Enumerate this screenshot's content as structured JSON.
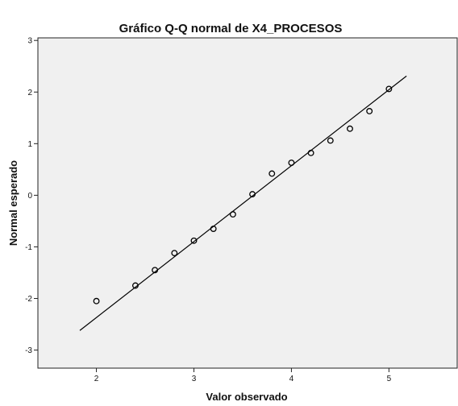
{
  "chart_data": {
    "type": "scatter",
    "title": "Gráfico Q-Q normal de X4_PROCESOS",
    "xlabel": "Valor observado",
    "ylabel": "Normal esperado",
    "xlim": [
      1.4,
      5.7
    ],
    "ylim": [
      -3.35,
      3.05
    ],
    "x_ticks": [
      2,
      3,
      4,
      5
    ],
    "y_ticks": [
      -3,
      -2,
      -1,
      0,
      1,
      2,
      3
    ],
    "grid": false,
    "series": [
      {
        "points": [
          [
            2.0,
            -2.05
          ],
          [
            2.4,
            -1.75
          ],
          [
            2.6,
            -1.45
          ],
          [
            2.8,
            -1.12
          ],
          [
            3.0,
            -0.88
          ],
          [
            3.2,
            -0.65
          ],
          [
            3.4,
            -0.37
          ],
          [
            3.6,
            0.02
          ],
          [
            3.8,
            0.42
          ],
          [
            4.0,
            0.63
          ],
          [
            4.2,
            0.82
          ],
          [
            4.4,
            1.06
          ],
          [
            4.6,
            1.29
          ],
          [
            4.8,
            1.63
          ],
          [
            5.0,
            2.06
          ]
        ]
      }
    ],
    "reference_line": {
      "x": [
        1.83,
        5.18
      ],
      "y": [
        -2.62,
        2.31
      ]
    },
    "colors": {
      "plot_background": "#f0f0f0",
      "marker": "#000000",
      "line": "#000000"
    }
  }
}
